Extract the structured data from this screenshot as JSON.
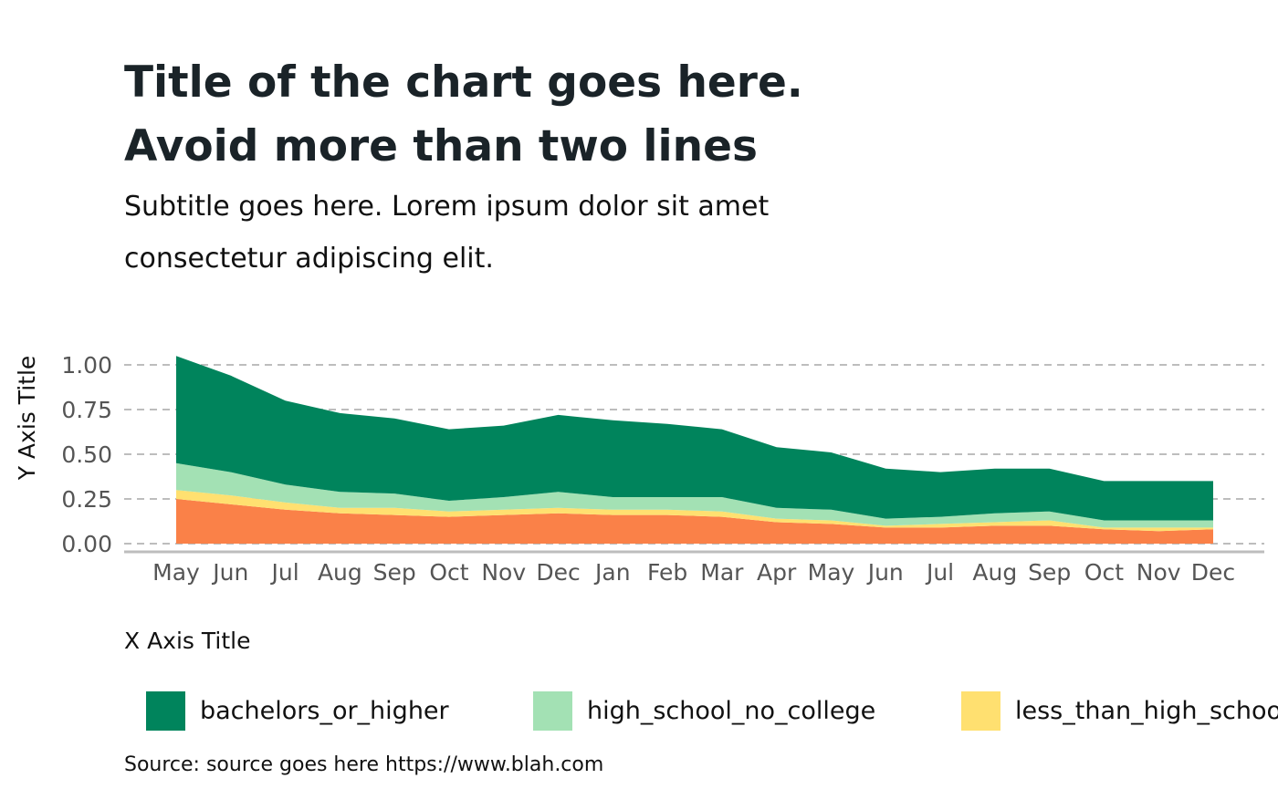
{
  "chart_data": {
    "type": "area",
    "stacked": true,
    "title_lines": [
      "Title of the chart goes here.",
      "Avoid more than two lines"
    ],
    "subtitle_lines": [
      "Subtitle goes here. Lorem ipsum dolor sit amet",
      "consectetur adipiscing elit."
    ],
    "xlabel": "X Axis Title",
    "ylabel": "Y Axis Title",
    "source": "Source: source goes here https://www.blah.com",
    "categories": [
      "May",
      "Jun",
      "Jul",
      "Aug",
      "Sep",
      "Oct",
      "Nov",
      "Dec",
      "Jan",
      "Feb",
      "Mar",
      "Apr",
      "May",
      "Jun",
      "Jul",
      "Aug",
      "Sep",
      "Oct",
      "Nov",
      "Dec"
    ],
    "ylim": [
      0,
      1.05
    ],
    "yticks": [
      "0.00",
      "0.25",
      "0.50",
      "0.75",
      "1.00"
    ],
    "ytick_values": [
      0,
      0.25,
      0.5,
      0.75,
      1.0
    ],
    "grid": "horizontal-dashed",
    "legend_position": "bottom",
    "series": [
      {
        "name": "bachelors_or_higher",
        "color": "#00845c",
        "values": [
          0.6,
          0.54,
          0.47,
          0.44,
          0.42,
          0.4,
          0.4,
          0.43,
          0.43,
          0.41,
          0.38,
          0.34,
          0.32,
          0.28,
          0.25,
          0.25,
          0.24,
          0.22,
          0.22,
          0.22
        ]
      },
      {
        "name": "high_school_no_college",
        "color": "#a3e1b4",
        "values": [
          0.15,
          0.13,
          0.1,
          0.09,
          0.08,
          0.06,
          0.07,
          0.09,
          0.07,
          0.07,
          0.08,
          0.06,
          0.06,
          0.04,
          0.04,
          0.05,
          0.05,
          0.04,
          0.04,
          0.04
        ]
      },
      {
        "name": "less_than_high_school",
        "color": "#ffe070",
        "values": [
          0.05,
          0.05,
          0.04,
          0.03,
          0.04,
          0.03,
          0.03,
          0.03,
          0.03,
          0.03,
          0.03,
          0.02,
          0.02,
          0.01,
          0.02,
          0.02,
          0.03,
          0.01,
          0.02,
          0.01
        ]
      },
      {
        "name": "",
        "color": "#fa8148",
        "values": [
          0.25,
          0.22,
          0.19,
          0.17,
          0.16,
          0.15,
          0.16,
          0.17,
          0.16,
          0.16,
          0.15,
          0.12,
          0.11,
          0.09,
          0.09,
          0.1,
          0.1,
          0.08,
          0.07,
          0.08
        ]
      }
    ],
    "legend": [
      {
        "label": "bachelors_or_higher",
        "color": "#00845c"
      },
      {
        "label": "high_school_no_college",
        "color": "#a3e1b4"
      },
      {
        "label": "less_than_high_school",
        "color": "#ffe070"
      }
    ]
  }
}
